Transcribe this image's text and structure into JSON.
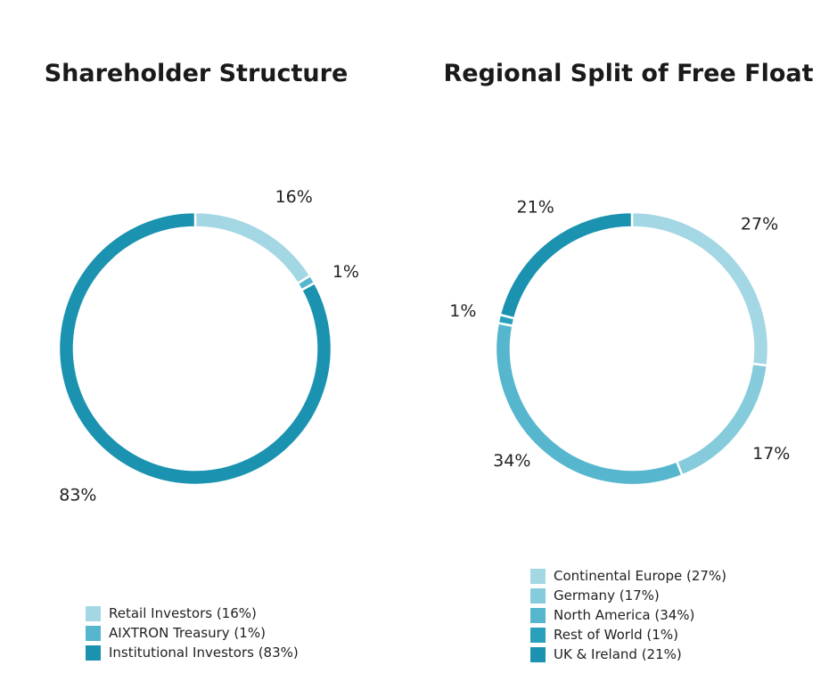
{
  "chart_data": [
    {
      "type": "pie",
      "title": "Shareholder Structure",
      "categories": [
        "Retail Investors",
        "AIXTRON Treasury",
        "Institutional Investors"
      ],
      "values": [
        16,
        1,
        83
      ],
      "data_labels": [
        "16%",
        "1%",
        "83%"
      ],
      "legend_labels": [
        "Retail Investors (16%)",
        "AIXTRON Treasury (1%)",
        "Institutional Investors (83%)"
      ],
      "colors": [
        "#a3d7e4",
        "#55b6cd",
        "#1b93b0"
      ],
      "style": "donut",
      "legend": "bottom"
    },
    {
      "type": "pie",
      "title": "Regional Split of Free Float",
      "categories": [
        "Continental Europe",
        "Germany",
        "North America",
        "Rest of World",
        "UK & Ireland"
      ],
      "values": [
        27,
        17,
        34,
        1,
        21
      ],
      "data_labels": [
        "27%",
        "17%",
        "34%",
        "1%",
        "21%"
      ],
      "legend_labels": [
        "Continental Europe (27%)",
        "Germany (17%)",
        "North America (34%)",
        "Rest of World (1%)",
        "UK & Ireland (21%)"
      ],
      "colors": [
        "#a3d7e4",
        "#85cbdb",
        "#55b6cd",
        "#2aa1bc",
        "#1b93b0"
      ],
      "style": "donut",
      "legend": "bottom"
    }
  ]
}
